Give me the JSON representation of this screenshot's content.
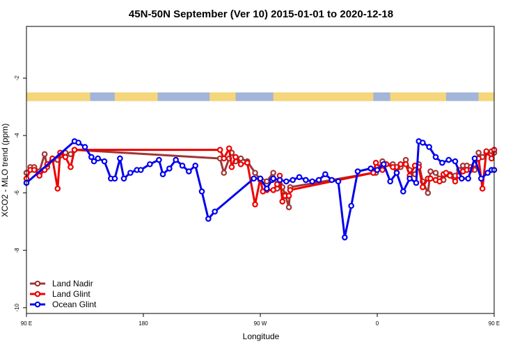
{
  "chart_data": {
    "type": "line",
    "title": "45N-50N September (Ver 10)   2015-01-01 to 2020-12-18",
    "xlabel": "Longitude",
    "ylabel": "XCO2 - MLO trend (ppm)",
    "xlim": [
      90,
      450
    ],
    "ylim": [
      -10.2,
      -0.2
    ],
    "xticks": [
      {
        "value": 90,
        "label": "90 E"
      },
      {
        "value": 180,
        "label": "180"
      },
      {
        "value": 270,
        "label": "90 W"
      },
      {
        "value": 360,
        "label": "0"
      },
      {
        "value": 450,
        "label": "90 E"
      },
      {
        "value": 540,
        "label": "180"
      }
    ],
    "yticks": [
      {
        "value": -2,
        "label": "-2"
      },
      {
        "value": -4,
        "label": "-4"
      },
      {
        "value": -6,
        "label": "-6"
      },
      {
        "value": -8,
        "label": "-8"
      },
      {
        "value": -10,
        "label": "-10"
      }
    ],
    "grid": false,
    "legend_position": "bottom-left",
    "land_strip": {
      "y_range": [
        -2.8,
        -2.5
      ],
      "ocean_color": "#a3b5d8",
      "land_color": "#f5d67a",
      "land_segments_lon": [
        [
          90,
          139
        ],
        [
          158,
          191
        ],
        [
          231,
          251
        ],
        [
          280,
          357
        ],
        [
          370,
          413
        ],
        [
          438,
          450
        ]
      ]
    },
    "series": [
      {
        "name": "Land Nadir",
        "color": "#a03535",
        "x": [
          90,
          93,
          96,
          100,
          104,
          106,
          110,
          114,
          116,
          120,
          124,
          127,
          239,
          242,
          246,
          248,
          251,
          255,
          260,
          266,
          270,
          272,
          275,
          280,
          283,
          285,
          287,
          289,
          292,
          293,
          357,
          359,
          364,
          367,
          372,
          375,
          378,
          382,
          385,
          389,
          392,
          395,
          399,
          401,
          405,
          408,
          411,
          413,
          416,
          420,
          423,
          426,
          429,
          432,
          435,
          438,
          441,
          444,
          448,
          450
        ],
        "y": [
          -5.3,
          -5.1,
          -5.1,
          -5.25,
          -4.65,
          -5.1,
          -4.85,
          -4.85,
          -4.7,
          -4.6,
          -4.65,
          -4.5,
          -4.8,
          -5.3,
          -4.8,
          -4.6,
          -4.9,
          -4.8,
          -4.9,
          -5.3,
          -5.55,
          -5.6,
          -5.6,
          -5.3,
          -5.85,
          -5.7,
          -5.8,
          -6.05,
          -6.5,
          -5.8,
          -5.3,
          -5.3,
          -4.9,
          -5.0,
          -5.0,
          -5.1,
          -5.1,
          -4.85,
          -5.2,
          -5.35,
          -5.0,
          -5.6,
          -6.0,
          -5.25,
          -5.3,
          -5.5,
          -5.55,
          -5.35,
          -5.35,
          -5.4,
          -5.2,
          -5.05,
          -5.05,
          -5.1,
          -5.2,
          -4.6,
          -4.75,
          -4.6,
          -4.55,
          -4.6
        ]
      },
      {
        "name": "Land Glint",
        "color": "#ee0000",
        "x": [
          90,
          93,
          96,
          100,
          104,
          106,
          110,
          114,
          116,
          120,
          124,
          127,
          239,
          242,
          246,
          248,
          251,
          255,
          260,
          266,
          270,
          272,
          275,
          280,
          283,
          285,
          287,
          289,
          292,
          293,
          357,
          359,
          364,
          367,
          372,
          375,
          378,
          382,
          385,
          389,
          392,
          395,
          399,
          401,
          405,
          408,
          411,
          413,
          416,
          420,
          423,
          426,
          429,
          432,
          435,
          438,
          441,
          444,
          448,
          450
        ],
        "y": [
          -5.5,
          -5.2,
          -5.2,
          -5.4,
          -5.2,
          -5.0,
          -4.8,
          -5.85,
          -4.6,
          -4.75,
          -5.1,
          -4.5,
          -4.5,
          -4.8,
          -4.45,
          -5.1,
          -4.75,
          -5.0,
          -4.95,
          -6.4,
          -5.5,
          -5.95,
          -5.9,
          -5.9,
          -5.7,
          -5.4,
          -6.3,
          -6.1,
          -6.1,
          -5.9,
          -5.3,
          -4.95,
          -5.2,
          -5.0,
          -5.1,
          -5.3,
          -5.0,
          -5.0,
          -5.4,
          -5.05,
          -5.1,
          -5.8,
          -5.5,
          -5.5,
          -5.55,
          -5.6,
          -5.35,
          -5.3,
          -5.4,
          -5.6,
          -5.4,
          -5.25,
          -5.2,
          -5.2,
          -5.0,
          -4.8,
          -5.85,
          -4.55,
          -4.8,
          -4.5
        ]
      },
      {
        "name": "Ocean Glint",
        "color": "#0000ee",
        "x": [
          90,
          127,
          130,
          135,
          140,
          142,
          145,
          150,
          155,
          158,
          162,
          165,
          170,
          175,
          178,
          185,
          192,
          195,
          200,
          205,
          210,
          215,
          220,
          225,
          230,
          235,
          265,
          270,
          275,
          279,
          280,
          285,
          290,
          295,
          300,
          305,
          310,
          315,
          320,
          325,
          330,
          335,
          340,
          345,
          355,
          360,
          365,
          370,
          375,
          380,
          385,
          390,
          392,
          395,
          400,
          405,
          410,
          415,
          420,
          425,
          430,
          435,
          440,
          445,
          448,
          450
        ],
        "y": [
          -5.65,
          -4.2,
          -4.25,
          -4.4,
          -4.75,
          -4.9,
          -4.8,
          -4.9,
          -5.5,
          -5.5,
          -4.8,
          -5.5,
          -5.3,
          -5.2,
          -5.2,
          -5.0,
          -4.85,
          -5.35,
          -5.15,
          -4.85,
          -5.05,
          -5.25,
          -5.05,
          -5.95,
          -6.9,
          -6.65,
          -5.5,
          -5.5,
          -5.85,
          -5.55,
          -5.5,
          -5.55,
          -5.6,
          -5.55,
          -5.45,
          -5.55,
          -5.6,
          -5.55,
          -5.35,
          -5.55,
          -5.6,
          -7.55,
          -6.45,
          -5.25,
          -5.15,
          -5.2,
          -5.0,
          -5.6,
          -5.3,
          -5.95,
          -5.5,
          -5.65,
          -4.2,
          -4.25,
          -4.4,
          -4.75,
          -4.95,
          -4.85,
          -4.9,
          -5.5,
          -5.5,
          -4.8,
          -5.5,
          -5.3,
          -5.2,
          -5.2
        ]
      }
    ]
  }
}
